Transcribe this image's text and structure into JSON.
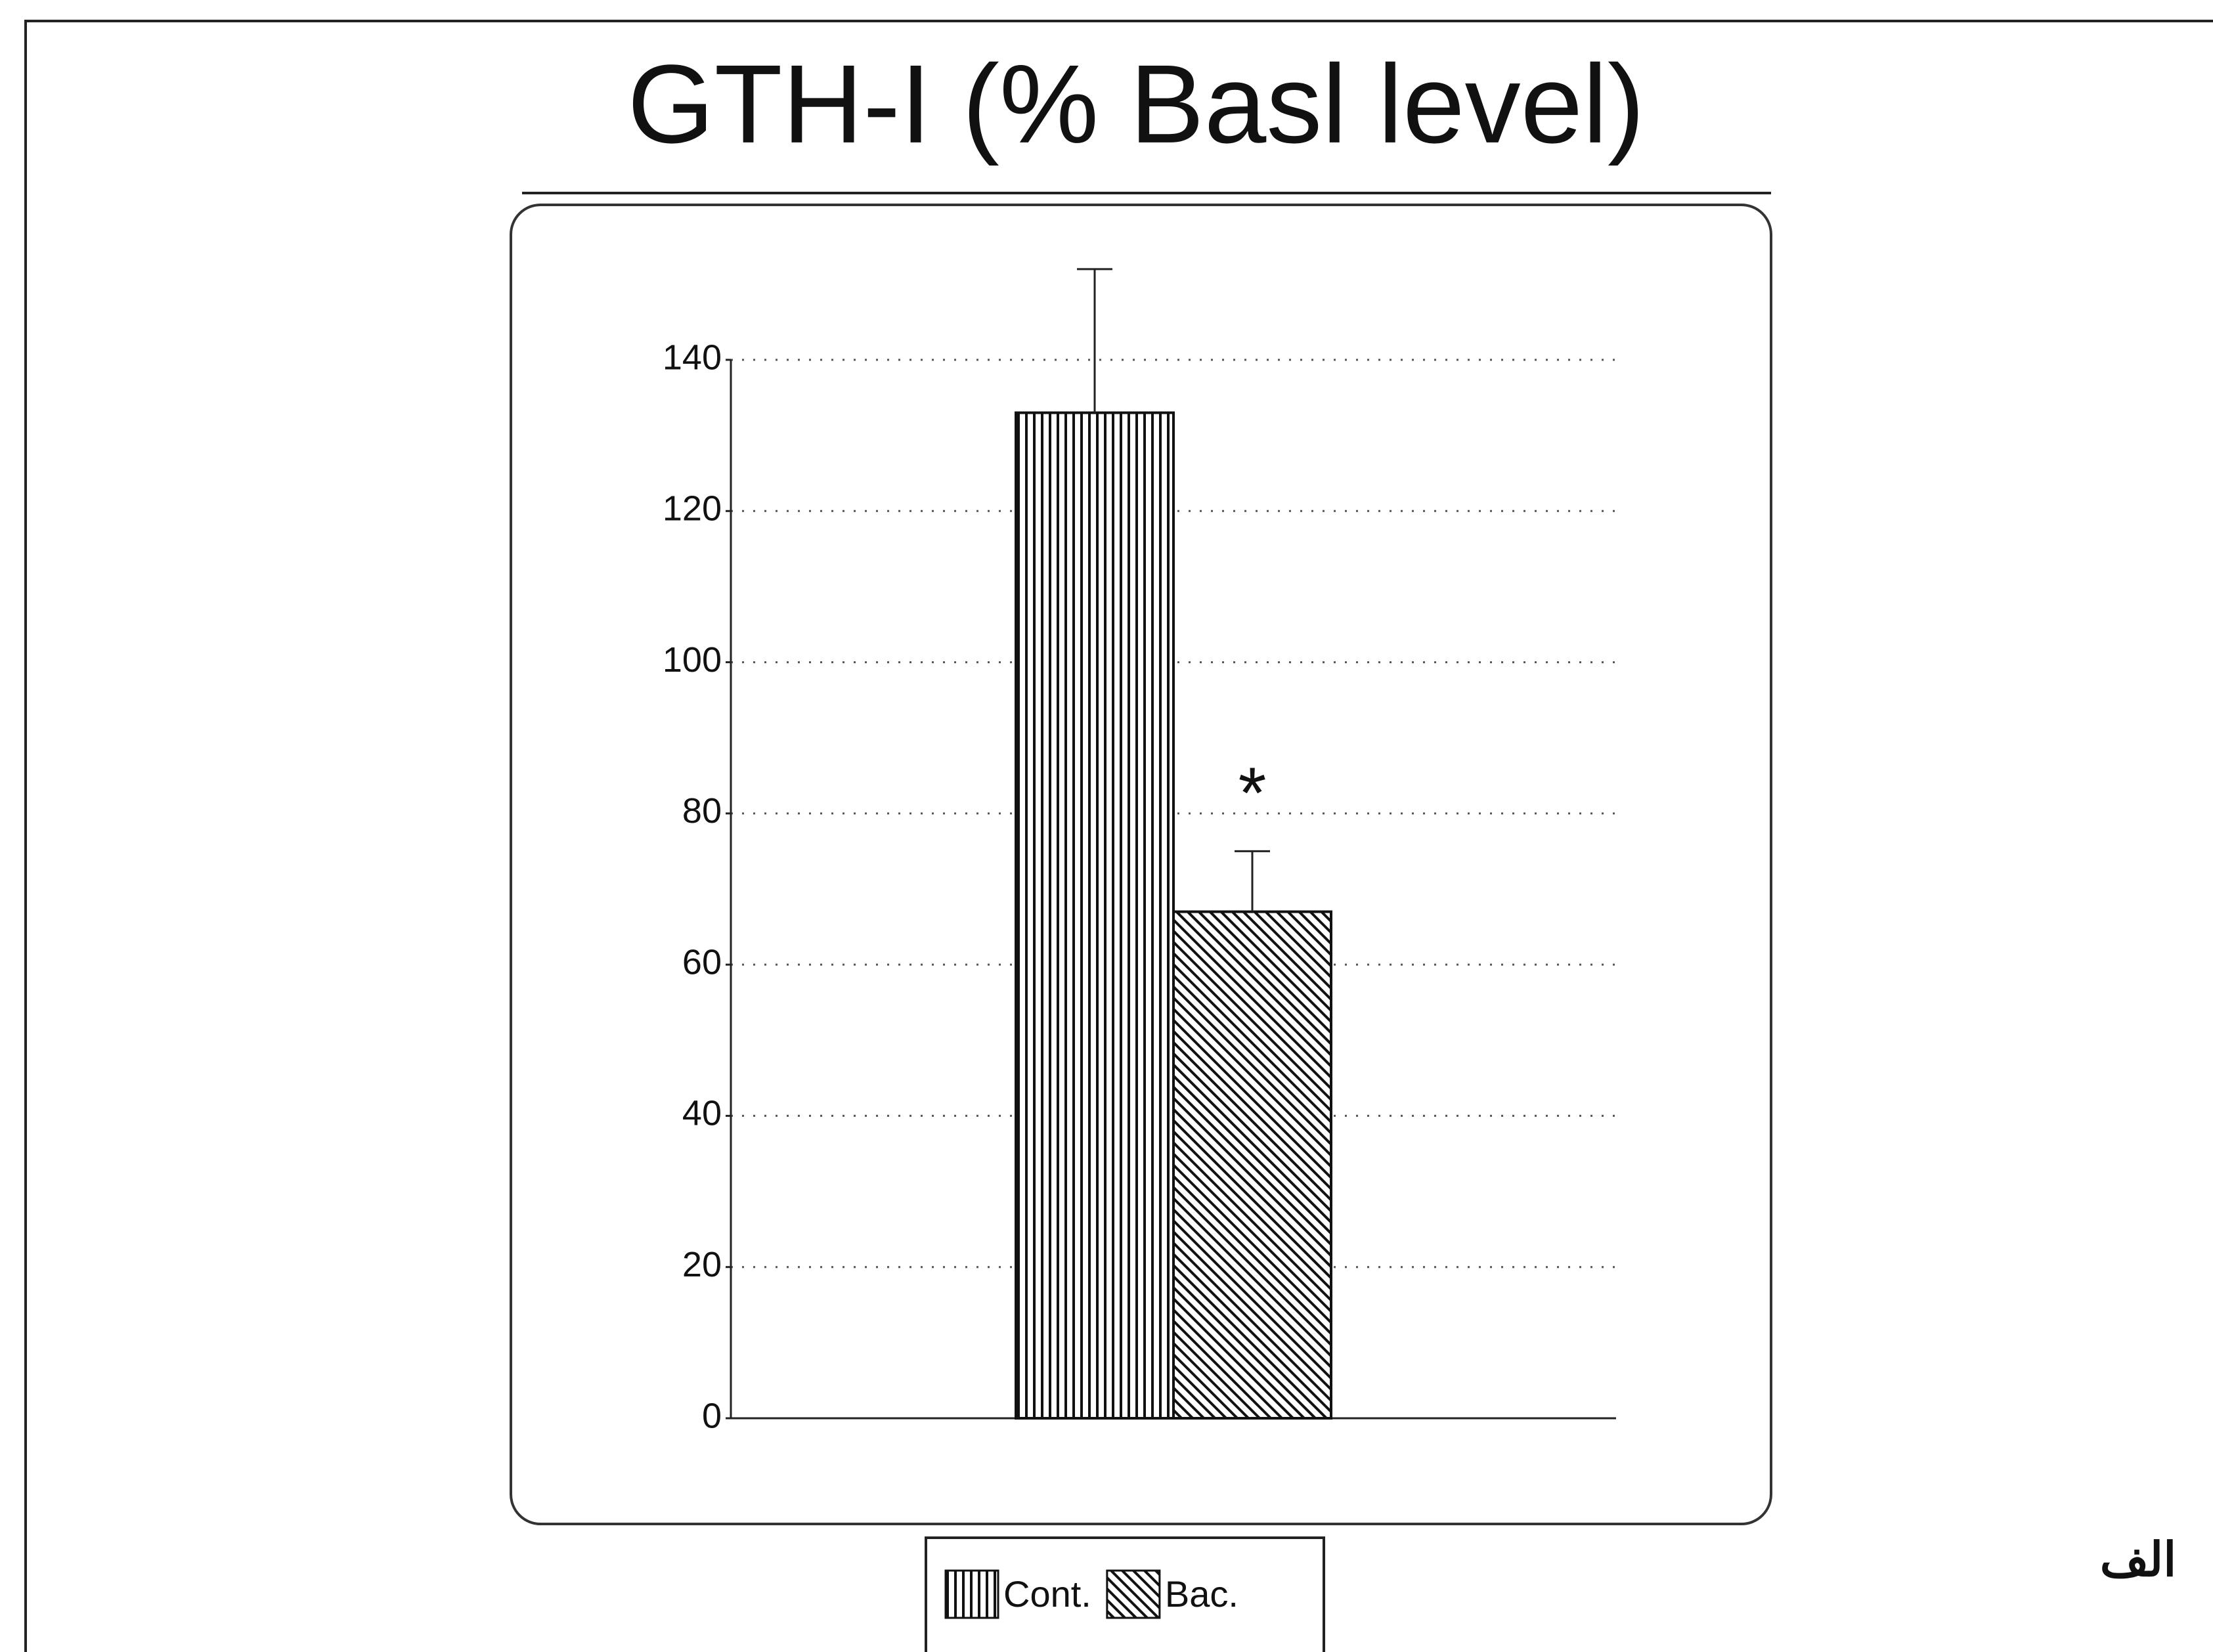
{
  "chart_data": {
    "type": "bar",
    "title": "GTH-I (% Basl level)",
    "categories": [
      null
    ],
    "series": [
      {
        "name": "Cont.",
        "color": "#111111",
        "pattern": "vertical",
        "values": [
          133
        ],
        "errors": [
          19
        ]
      },
      {
        "name": "Bac.",
        "color": "#111111",
        "pattern": "diagonal",
        "values": [
          67
        ],
        "errors": [
          8
        ]
      }
    ],
    "annotation": "*",
    "ylim": [
      0,
      140
    ],
    "yticks": [
      0,
      20,
      40,
      60,
      80,
      100,
      120,
      140
    ],
    "grid": true
  },
  "side_label": "الف"
}
